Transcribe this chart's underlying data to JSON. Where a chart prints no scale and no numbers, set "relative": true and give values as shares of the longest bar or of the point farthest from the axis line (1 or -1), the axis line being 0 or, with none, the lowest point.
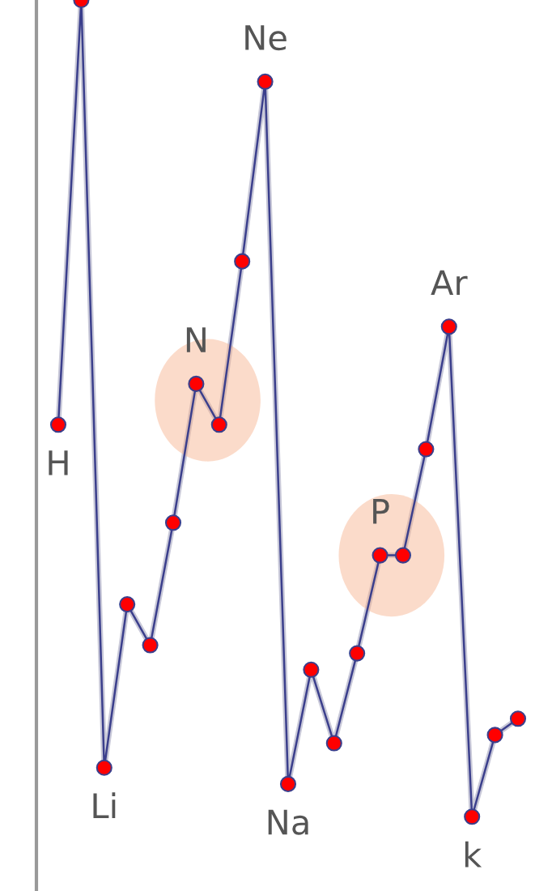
{
  "chart_data": {
    "type": "line",
    "relative": true,
    "marker": "circle",
    "line_style": "solid",
    "categories": [
      "H",
      null,
      "Li",
      null,
      null,
      null,
      "N",
      null,
      null,
      "Ne",
      "Na",
      null,
      null,
      null,
      "P",
      null,
      null,
      "Ar",
      "k",
      null,
      null
    ],
    "series": [
      {
        "color": "#3b3f8c",
        "values": [
          0.48,
          1.0,
          0.06,
          0.26,
          0.21,
          0.36,
          0.53,
          0.48,
          0.68,
          0.9,
          0.04,
          0.18,
          0.09,
          0.2,
          0.32,
          0.32,
          0.45,
          0.6,
          0.0,
          0.1,
          0.12
        ]
      }
    ]
  }
}
